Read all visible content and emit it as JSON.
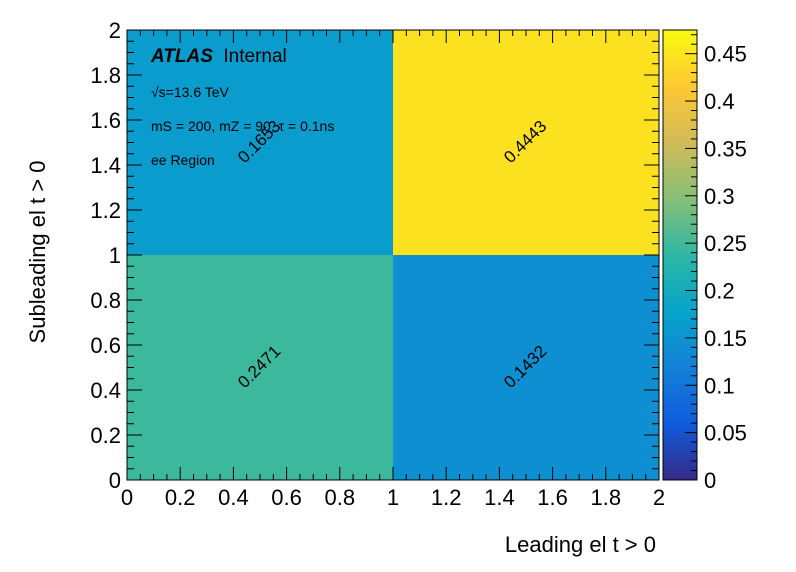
{
  "chart_data": {
    "type": "heatmap",
    "xlabel": "Leading el t > 0",
    "ylabel": "Subleading el t > 0",
    "xlim": [
      0,
      2
    ],
    "ylim": [
      0,
      2
    ],
    "x_edges": [
      0,
      1,
      2
    ],
    "y_edges": [
      0,
      1,
      2
    ],
    "x_ticks": [
      "0",
      "0.2",
      "0.4",
      "0.6",
      "0.8",
      "1",
      "1.2",
      "1.4",
      "1.6",
      "1.8",
      "2"
    ],
    "y_ticks": [
      "0",
      "0.2",
      "0.4",
      "0.6",
      "0.8",
      "1",
      "1.2",
      "1.4",
      "1.6",
      "1.8",
      "2"
    ],
    "cells": [
      {
        "x": 0,
        "y": 0,
        "value": 0.2471,
        "label": "0.2471"
      },
      {
        "x": 1,
        "y": 0,
        "value": 0.1432,
        "label": "0.1432"
      },
      {
        "x": 0,
        "y": 1,
        "value": 0.1653,
        "label": "0.1653"
      },
      {
        "x": 1,
        "y": 1,
        "value": 0.4443,
        "label": "0.4443"
      }
    ],
    "colorbar": {
      "range": [
        0,
        0.475
      ],
      "ticks": [
        "0",
        "0.05",
        "0.1",
        "0.15",
        "0.2",
        "0.25",
        "0.3",
        "0.35",
        "0.4",
        "0.45"
      ]
    },
    "colormap": [
      "#352a87",
      "#0f5cdd",
      "#1481d6",
      "#06a4ca",
      "#2eb7a4",
      "#87bf77",
      "#d1bb59",
      "#fec832",
      "#f9fb0e"
    ]
  },
  "annotations": {
    "atlas": "ATLAS",
    "internal": "Internal",
    "energy": "√s=13.6 TeV",
    "params": "mS = 200, mZ = 90, τ = 0.1ns",
    "region": "ee Region"
  }
}
